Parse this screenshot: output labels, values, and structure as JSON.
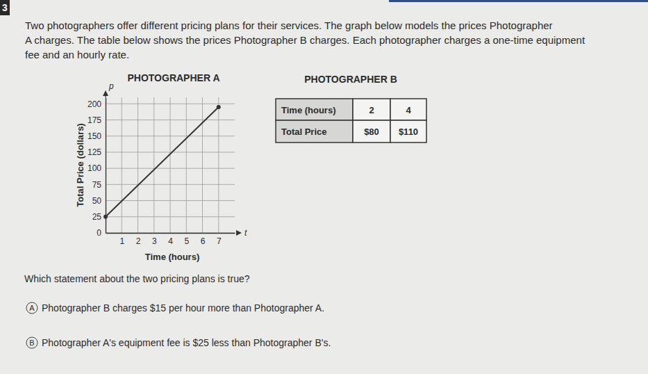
{
  "number": "3",
  "intro": [
    "Two photographers offer different pricing plans for their services. The graph below models the prices Photographer",
    "A charges. The table below shows the prices Photographer B charges. Each photographer charges a one-time equipment",
    "fee and an hourly rate."
  ],
  "chart_data": {
    "type": "line",
    "title": "PHOTOGRAPHER A",
    "xlabel": "Time (hours)",
    "ylabel": "Total Price (dollars)",
    "x_symbol": "t",
    "y_symbol": "p",
    "x": [
      0,
      7
    ],
    "values": [
      25,
      195
    ],
    "color": "#333333",
    "marker": "circle",
    "xlim": [
      0,
      8
    ],
    "xticks": [
      1,
      2,
      3,
      4,
      5,
      6,
      7
    ],
    "ylim": [
      0,
      210
    ],
    "yticks": [
      0,
      25,
      50,
      75,
      100,
      125,
      150,
      175,
      200
    ],
    "grid": true
  },
  "table": {
    "title": "PHOTOGRAPHER B",
    "rows": [
      [
        "Time (hours)",
        "2",
        "4"
      ],
      [
        "Total Price",
        "$80",
        "$110"
      ]
    ]
  },
  "question": "Which statement about the two pricing plans is true?",
  "options": [
    {
      "letter": "A",
      "text": "Photographer B charges $15 per hour more than Photographer A."
    },
    {
      "letter": "B",
      "text": "Photographer A's equipment fee is $25 less than Photographer B's."
    }
  ]
}
